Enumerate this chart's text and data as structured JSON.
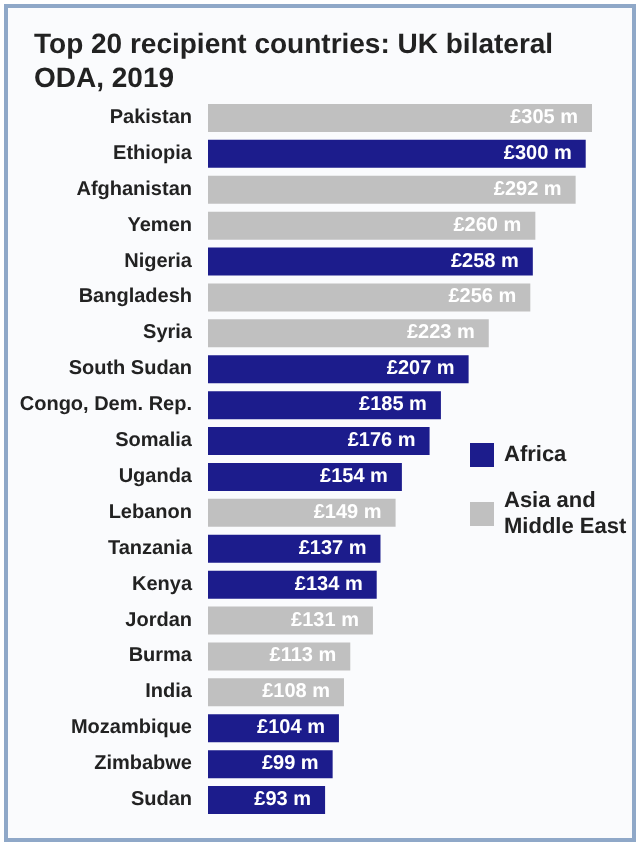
{
  "chart_data": {
    "type": "bar",
    "orientation": "horizontal",
    "stacked": true,
    "title": "Top 20 recipient countries: UK bilateral ODA, 2019",
    "categories": [
      "Pakistan",
      "Ethiopia",
      "Afghanistan",
      "Yemen",
      "Nigeria",
      "Bangladesh",
      "Syria",
      "South Sudan",
      "Congo, Dem. Rep.",
      "Somalia",
      "Uganda",
      "Lebanon",
      "Tanzania",
      "Kenya",
      "Jordan",
      "Burma",
      "India",
      "Mozambique",
      "Zimbabwe",
      "Sudan"
    ],
    "series": [
      {
        "name": "Africa",
        "color": "#1c1c8c",
        "values": [
          null,
          300,
          null,
          null,
          258,
          null,
          null,
          207,
          185,
          176,
          154,
          null,
          137,
          134,
          null,
          null,
          null,
          104,
          99,
          93
        ],
        "value_labels": [
          null,
          "£300 m",
          null,
          null,
          "£258 m",
          null,
          null,
          "£207 m",
          "£185 m",
          "£176 m",
          "£154 m",
          null,
          "£137 m",
          "£134 m",
          null,
          null,
          null,
          "£104 m",
          "£99 m",
          "£93 m"
        ]
      },
      {
        "name": "Asia and Middle East",
        "color": "#c0c0c0",
        "values": [
          305,
          null,
          292,
          260,
          null,
          256,
          223,
          null,
          null,
          null,
          null,
          149,
          null,
          null,
          131,
          113,
          108,
          null,
          null,
          null
        ],
        "value_labels": [
          "£305 m",
          null,
          "£292 m",
          "£260 m",
          null,
          "£256 m",
          "£223 m",
          null,
          null,
          null,
          null,
          "£149 m",
          null,
          null,
          "£131 m",
          "£113 m",
          "£108 m",
          null,
          null,
          null
        ]
      }
    ],
    "legend": "right"
  }
}
